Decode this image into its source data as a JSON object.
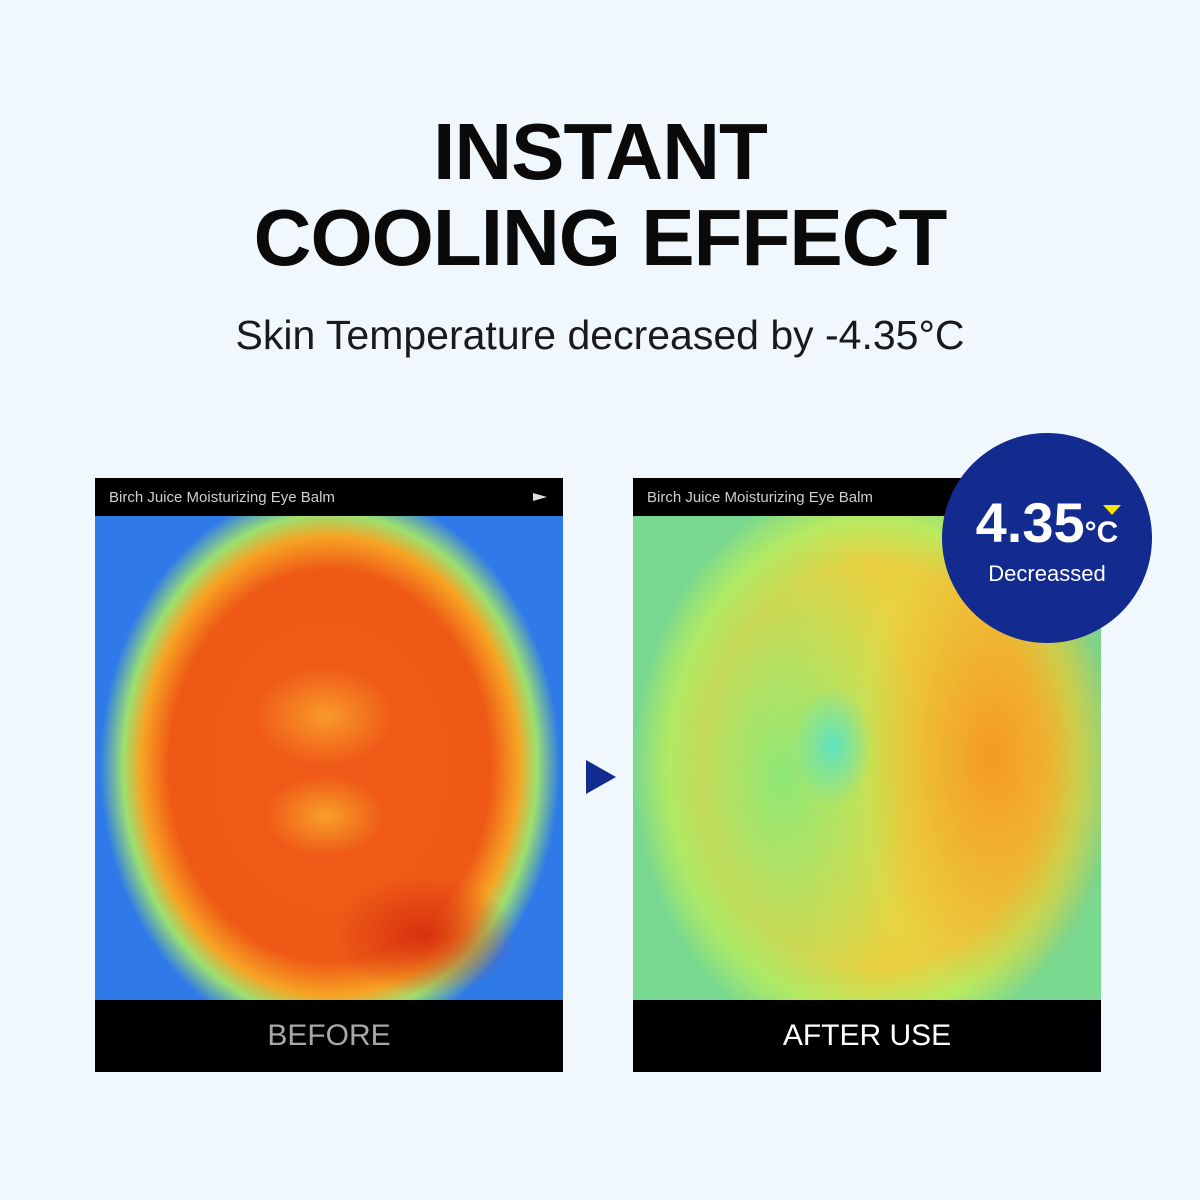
{
  "title_line1": "INSTANT",
  "title_line2": "COOLING EFFECT",
  "subtitle": "Skin Temperature decreased by -4.35°C",
  "panels": [
    {
      "caption": "Birch Juice Moisturizing Eye Balm",
      "label": "BEFORE",
      "icon": "play-icon"
    },
    {
      "caption": "Birch Juice Moisturizing Eye Balm",
      "label": "AFTER USE"
    }
  ],
  "badge": {
    "value": "4.35",
    "unit": "°C",
    "label": "Decreassed",
    "icon": "down-triangle-icon"
  },
  "colors": {
    "background": "#f0f7fd",
    "accent": "#132a8f",
    "indicator": "#f5e400"
  }
}
